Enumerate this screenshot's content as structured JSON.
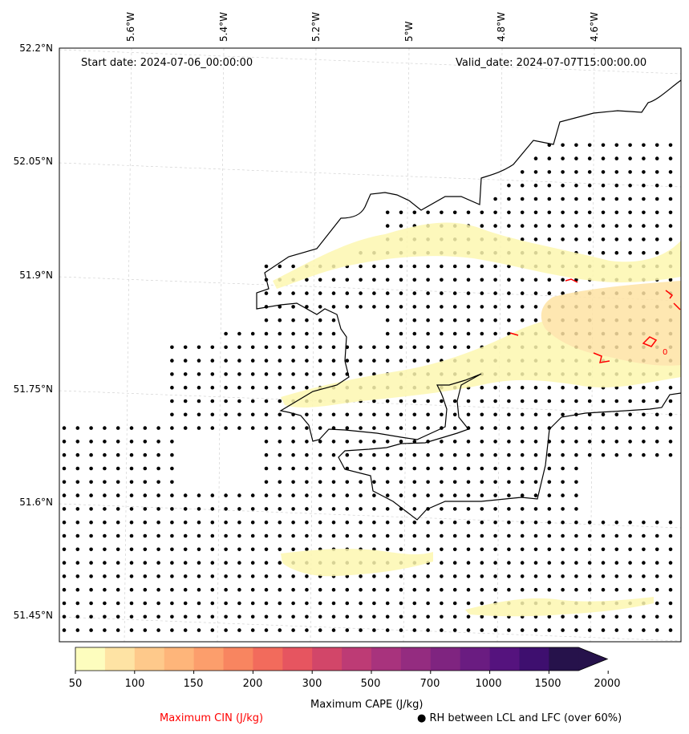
{
  "header": {
    "start_date": "Start date: 2024-07-06_00:00:00",
    "valid_date": "Valid_date: 2024-07-07T15:00:00.00"
  },
  "map": {
    "lon_ticks": [
      "5.6°W",
      "5.4°W",
      "5.2°W",
      "5°W",
      "4.8°W",
      "4.6°W"
    ],
    "lat_ticks": [
      "52.2°N",
      "52.05°N",
      "51.9°N",
      "51.75°N",
      "51.6°N",
      "51.45°N"
    ],
    "contour_label": "0"
  },
  "colorbar": {
    "title": "Maximum CAPE (J/kg)",
    "ticks": [
      "50",
      "100",
      "150",
      "200",
      "300",
      "500",
      "700",
      "1000",
      "1500",
      "2000"
    ],
    "colors": [
      "#fdfdbe",
      "#fee3a4",
      "#fec98b",
      "#feb57a",
      "#fc9e6c",
      "#f88560",
      "#f26b5c",
      "#e65560",
      "#d24669",
      "#bd3b75",
      "#a8337d",
      "#942c80",
      "#7f2480",
      "#6a1c81",
      "#55137e",
      "#3e0f6f",
      "#26124b"
    ]
  },
  "legend": {
    "cin_label": "Maximum CIN (J/kg)",
    "cin_color": "#ff0000",
    "rh_label": "RH between LCL and LFC (over 60%)",
    "rh_marker": "●"
  }
}
